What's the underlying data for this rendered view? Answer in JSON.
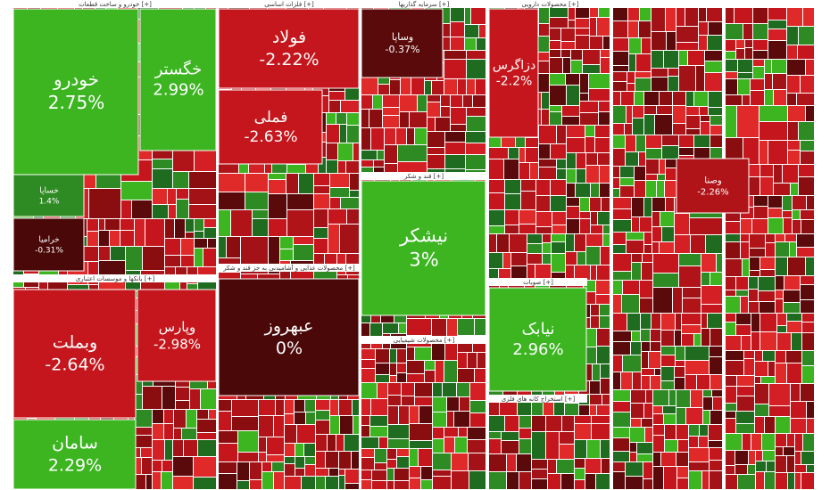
{
  "sectors": [
    {
      "title": "خودرو و ساخت قطعات [+]"
    },
    {
      "title": "فلزات اساسی [+]"
    },
    {
      "title": "سرمایه گذاریها [+]"
    },
    {
      "title": "محصولات دارویی [+]"
    },
    {
      "title": "قند و شکر [+]"
    },
    {
      "title": "محصولات غذایی و آشامیدنی به جز قند و شکر [+]"
    },
    {
      "title": "بانکها و موسسات اعتباری [+]"
    },
    {
      "title": "محصولات شیمیایی [+]"
    },
    {
      "title": "استخراج کانه های فلزی [+]"
    },
    {
      "title": "صوبات [+]"
    }
  ],
  "tiles": [
    {
      "name": "خودرو",
      "change": "2.75%",
      "color": "#3cb521"
    },
    {
      "name": "خگستر",
      "change": "2.99%",
      "color": "#3cb521"
    },
    {
      "name": "فولاد",
      "change": "-2.22%",
      "color": "#c4161c"
    },
    {
      "name": "فملی",
      "change": "-2.63%",
      "color": "#c4161c"
    },
    {
      "name": "وساپا",
      "change": "-0.37%",
      "color": "#5a0a0a"
    },
    {
      "name": "دزاگرس",
      "change": "-2.2%",
      "color": "#c4161c"
    },
    {
      "name": "نیشکر",
      "change": "3%",
      "color": "#3cb521"
    },
    {
      "name": "عبهروز",
      "change": "0%",
      "color": "#4a0808"
    },
    {
      "name": "وبملت",
      "change": "-2.64%",
      "color": "#c4161c"
    },
    {
      "name": "وپارس",
      "change": "-2.98%",
      "color": "#c4161c"
    },
    {
      "name": "سامان",
      "change": "2.29%",
      "color": "#3cb521"
    },
    {
      "name": "نیابک",
      "change": "2.96%",
      "color": "#3cb521"
    },
    {
      "name": "خساپا",
      "change": "1.4%",
      "color": "#2e8a22"
    },
    {
      "name": "خرامیا",
      "change": "-0.31%",
      "color": "#4a0808"
    },
    {
      "name": "وصنا",
      "change": "-2.26%",
      "color": "#b01419"
    }
  ]
}
